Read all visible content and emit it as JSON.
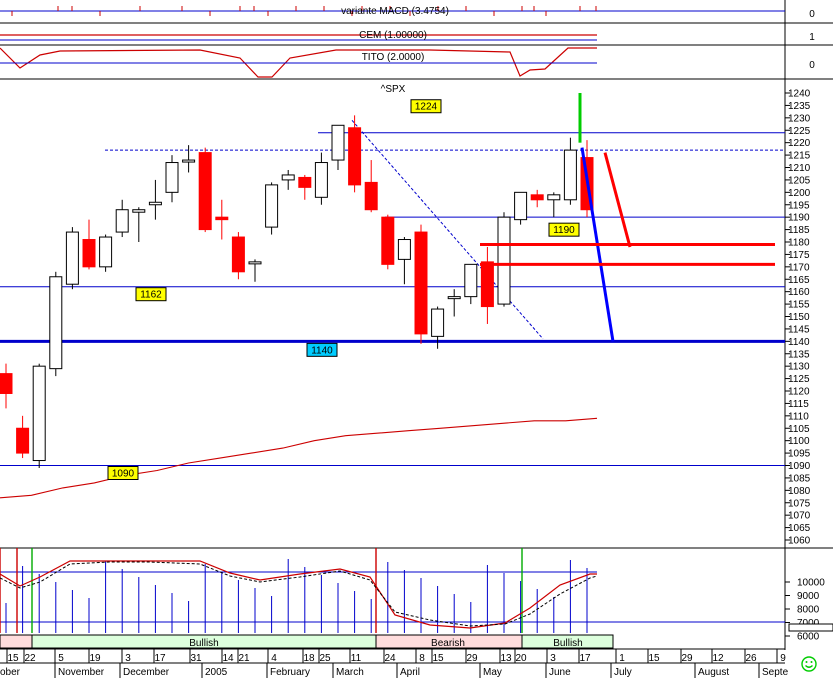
{
  "chart_data": {
    "type": "candlestick",
    "symbol": "^SPX",
    "indicator_labels": [
      "variante MACD (3.4754)",
      "CEM (1.00000)",
      "TITO (2.0000)"
    ],
    "indicator_ticks": [
      "0",
      "1",
      "0"
    ],
    "price_ticks": [
      1060,
      1065,
      1070,
      1075,
      1080,
      1085,
      1090,
      1095,
      1100,
      1105,
      1110,
      1115,
      1120,
      1125,
      1130,
      1135,
      1140,
      1145,
      1150,
      1155,
      1160,
      1165,
      1170,
      1175,
      1180,
      1185,
      1190,
      1195,
      1200,
      1205,
      1210,
      1215,
      1220,
      1225,
      1230,
      1235,
      1240
    ],
    "ylim": [
      1060,
      1240
    ],
    "price_level_labels": [
      "1224",
      "1162",
      "1140",
      "1090",
      "1190"
    ],
    "level_values": {
      "1224": 1224,
      "1162": 1162,
      "1140": 1140,
      "1090": 1090,
      "1190": 1190
    },
    "dotted_level": 1217,
    "stoch_ticks": [
      "10000",
      "9000",
      "8000",
      "7000",
      "6000"
    ],
    "band_labels": [
      "Bullish",
      "Bearish",
      "Bullish"
    ],
    "date_ticks": [
      "15",
      "22",
      "5",
      "19",
      "3",
      "17",
      "31",
      "14",
      "21",
      "4",
      "18",
      "25",
      "11",
      "24",
      "8",
      "15",
      "29",
      "13",
      "20",
      "3",
      "17",
      "1",
      "15",
      "29",
      "12",
      "26",
      "9"
    ],
    "month_labels": [
      "ober",
      "November",
      "December",
      "2005",
      "February",
      "March",
      "April",
      "May",
      "June",
      "July",
      "August",
      "Septe"
    ],
    "candles": [
      {
        "o": 1127,
        "h": 1131,
        "l": 1113,
        "c": 1119
      },
      {
        "o": 1105,
        "h": 1110,
        "l": 1093,
        "c": 1095
      },
      {
        "o": 1092,
        "h": 1131,
        "l": 1089,
        "c": 1130
      },
      {
        "o": 1129,
        "h": 1168,
        "l": 1126,
        "c": 1166
      },
      {
        "o": 1163,
        "h": 1186,
        "l": 1161,
        "c": 1184
      },
      {
        "o": 1181,
        "h": 1189,
        "l": 1169,
        "c": 1170
      },
      {
        "o": 1170,
        "h": 1183,
        "l": 1168,
        "c": 1182
      },
      {
        "o": 1184,
        "h": 1197,
        "l": 1182,
        "c": 1193
      },
      {
        "o": 1192,
        "h": 1194,
        "l": 1180,
        "c": 1193
      },
      {
        "o": 1195,
        "h": 1205,
        "l": 1189,
        "c": 1196
      },
      {
        "o": 1200,
        "h": 1215,
        "l": 1196,
        "c": 1212
      },
      {
        "o": 1213,
        "h": 1219,
        "l": 1208,
        "c": 1213
      },
      {
        "o": 1216,
        "h": 1218,
        "l": 1184,
        "c": 1185
      },
      {
        "o": 1190,
        "h": 1197,
        "l": 1181,
        "c": 1189
      },
      {
        "o": 1182,
        "h": 1184,
        "l": 1165,
        "c": 1168
      },
      {
        "o": 1172,
        "h": 1173,
        "l": 1164,
        "c": 1172
      },
      {
        "o": 1186,
        "h": 1204,
        "l": 1183,
        "c": 1203
      },
      {
        "o": 1205,
        "h": 1209,
        "l": 1201,
        "c": 1207
      },
      {
        "o": 1206,
        "h": 1207,
        "l": 1197,
        "c": 1202
      },
      {
        "o": 1198,
        "h": 1216,
        "l": 1195,
        "c": 1212
      },
      {
        "o": 1213,
        "h": 1226,
        "l": 1209,
        "c": 1227
      },
      {
        "o": 1226,
        "h": 1231,
        "l": 1200,
        "c": 1203
      },
      {
        "o": 1204,
        "h": 1213,
        "l": 1192,
        "c": 1193
      },
      {
        "o": 1190,
        "h": 1191,
        "l": 1169,
        "c": 1171
      },
      {
        "o": 1173,
        "h": 1182,
        "l": 1163,
        "c": 1181
      },
      {
        "o": 1184,
        "h": 1187,
        "l": 1139,
        "c": 1143
      },
      {
        "o": 1142,
        "h": 1154,
        "l": 1137,
        "c": 1153
      },
      {
        "o": 1158,
        "h": 1161,
        "l": 1150,
        "c": 1158
      },
      {
        "o": 1158,
        "h": 1171,
        "l": 1155,
        "c": 1171
      },
      {
        "o": 1172,
        "h": 1178,
        "l": 1147,
        "c": 1154
      },
      {
        "o": 1155,
        "h": 1192,
        "l": 1154,
        "c": 1190
      },
      {
        "o": 1189,
        "h": 1200,
        "l": 1187,
        "c": 1200
      },
      {
        "o": 1199,
        "h": 1201,
        "l": 1194,
        "c": 1197
      },
      {
        "o": 1197,
        "h": 1200,
        "l": 1190,
        "c": 1199
      },
      {
        "o": 1197,
        "h": 1222,
        "l": 1195,
        "c": 1217
      },
      {
        "o": 1214,
        "h": 1221,
        "l": 1190,
        "c": 1193
      }
    ],
    "moving_average": [
      1077,
      1078,
      1081,
      1083,
      1086,
      1088,
      1091,
      1093,
      1095,
      1097,
      1100,
      1102,
      1103,
      1104,
      1105,
      1106,
      1107,
      1108,
      1108,
      1109
    ],
    "colors": {
      "up": "#ffffff",
      "down": "#ff0000",
      "outline": "#000000",
      "level": "#0000cc",
      "ma": "#cc0000",
      "label_yellow": "#ffff00",
      "label_cyan": "#00ccff",
      "green": "#00cc00",
      "blue": "#0000ff",
      "band_green": "#00aa00",
      "band_red": "#cc0000"
    }
  }
}
